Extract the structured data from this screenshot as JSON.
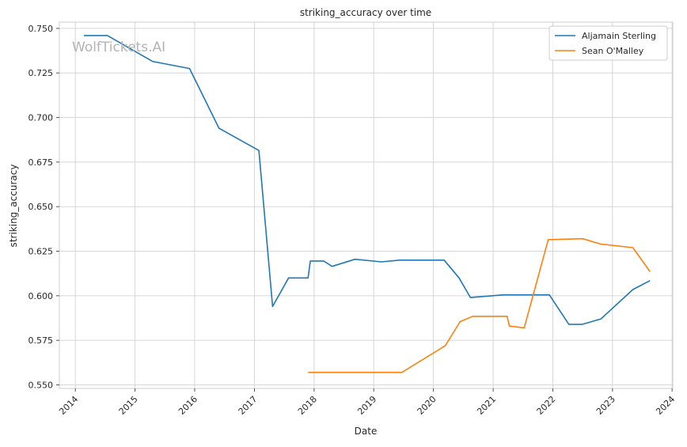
{
  "chart_data": {
    "type": "line",
    "title": "striking_accuracy over time",
    "xlabel": "Date",
    "ylabel": "striking_accuracy",
    "watermark": "WolfTickets.AI",
    "x_axis_type": "date",
    "xlim": [
      "2013-09-25",
      "2024-01-05"
    ],
    "ylim": [
      0.548,
      0.7535
    ],
    "x_ticks": [
      "2014",
      "2015",
      "2016",
      "2017",
      "2018",
      "2019",
      "2020",
      "2021",
      "2022",
      "2023",
      "2024"
    ],
    "y_ticks": [
      "0.550",
      "0.575",
      "0.600",
      "0.625",
      "0.650",
      "0.675",
      "0.700",
      "0.725",
      "0.750"
    ],
    "grid": true,
    "legend_position": "top-right",
    "series": [
      {
        "name": "Aljamain Sterling",
        "color": "#1f77b4",
        "points": [
          [
            "2014-02-22",
            0.746
          ],
          [
            "2014-07-16",
            0.746
          ],
          [
            "2015-04-18",
            0.7315
          ],
          [
            "2015-12-01",
            0.7275
          ],
          [
            "2016-05-29",
            0.694
          ],
          [
            "2017-01-28",
            0.6815
          ],
          [
            "2017-04-22",
            0.594
          ],
          [
            "2017-07-29",
            0.61
          ],
          [
            "2017-11-25",
            0.61
          ],
          [
            "2017-12-09",
            0.6195
          ],
          [
            "2018-03-01",
            0.6195
          ],
          [
            "2018-04-21",
            0.6165
          ],
          [
            "2018-09-08",
            0.6205
          ],
          [
            "2019-02-17",
            0.619
          ],
          [
            "2019-06-08",
            0.62
          ],
          [
            "2020-03-07",
            0.62
          ],
          [
            "2020-06-06",
            0.61
          ],
          [
            "2020-08-15",
            0.599
          ],
          [
            "2021-03-06",
            0.6005
          ],
          [
            "2021-12-11",
            0.6005
          ],
          [
            "2022-04-09",
            0.584
          ],
          [
            "2022-07-02",
            0.584
          ],
          [
            "2022-10-22",
            0.587
          ],
          [
            "2023-05-06",
            0.6035
          ],
          [
            "2023-08-19",
            0.6085
          ]
        ]
      },
      {
        "name": "Sean O'Malley",
        "color": "#ff7f0e",
        "points": [
          [
            "2017-11-25",
            0.557
          ],
          [
            "2019-06-22",
            0.557
          ],
          [
            "2020-03-14",
            0.572
          ],
          [
            "2020-06-13",
            0.5855
          ],
          [
            "2020-08-29",
            0.5885
          ],
          [
            "2021-03-27",
            0.5885
          ],
          [
            "2021-04-10",
            0.583
          ],
          [
            "2021-07-10",
            0.582
          ],
          [
            "2021-12-04",
            0.6315
          ],
          [
            "2022-07-02",
            0.632
          ],
          [
            "2022-10-22",
            0.629
          ],
          [
            "2023-05-06",
            0.627
          ],
          [
            "2023-08-19",
            0.6135
          ]
        ]
      }
    ]
  }
}
